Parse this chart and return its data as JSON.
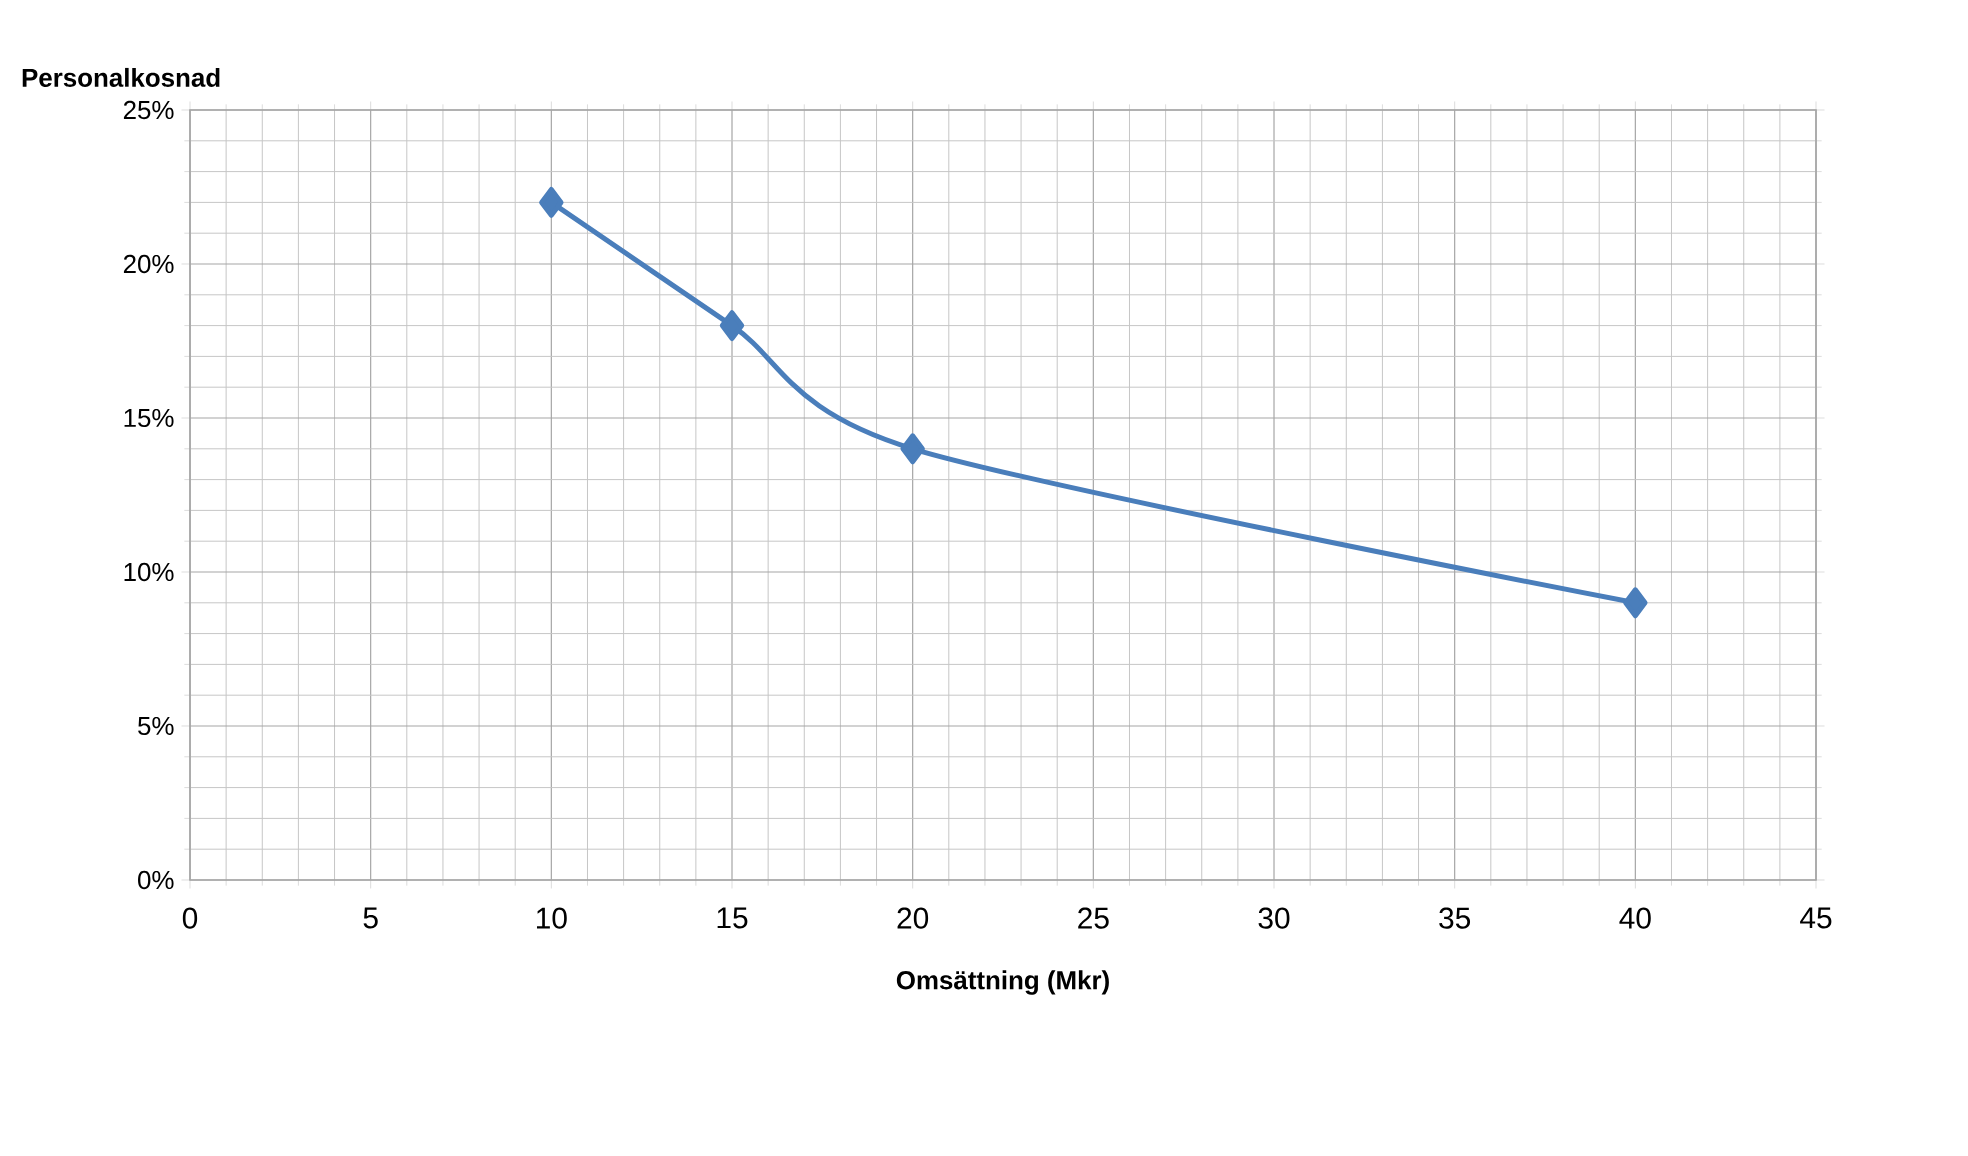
{
  "chart_data": {
    "type": "line",
    "ylabel": "Personalkosnad",
    "xlabel": "Omsättning (Mkr)",
    "x": [
      10,
      15,
      20,
      40
    ],
    "series": [
      {
        "color": "#4a7ebb",
        "values": [
          22,
          18,
          14,
          9
        ]
      }
    ],
    "xlim": [
      0,
      45
    ],
    "xticks": [
      0,
      5,
      10,
      15,
      20,
      25,
      30,
      35,
      40,
      45
    ],
    "ylim": [
      0,
      25
    ],
    "yticks": [
      {
        "value": 0,
        "label": "0%"
      },
      {
        "value": 5,
        "label": "5%"
      },
      {
        "value": 10,
        "label": "10%"
      },
      {
        "value": 15,
        "label": "15%"
      },
      {
        "value": 20,
        "label": "20%"
      },
      {
        "value": 25,
        "label": "25%"
      }
    ],
    "grid": true,
    "marker": "diamond",
    "line_style": "solid"
  }
}
